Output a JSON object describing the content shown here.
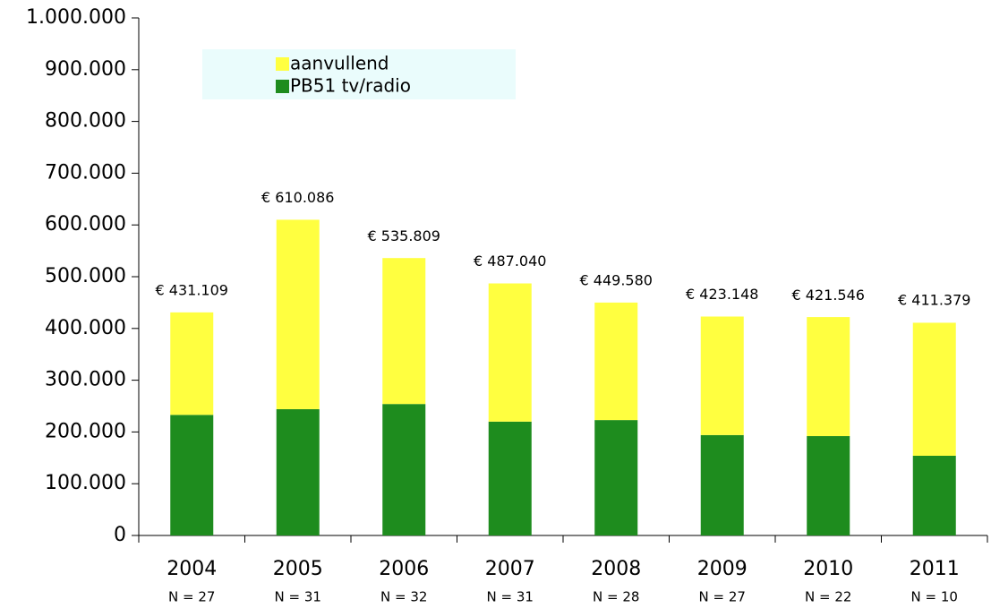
{
  "chart_data": {
    "type": "stacked-bar",
    "categories": [
      "2004",
      "2005",
      "2006",
      "2007",
      "2008",
      "2009",
      "2010",
      "2011"
    ],
    "n_labels": [
      "N = 27",
      "N = 31",
      "N = 32",
      "N = 31",
      "N = 28",
      "N = 27",
      "N = 22",
      "N = 10"
    ],
    "series": [
      {
        "name": "PB51 tv/radio",
        "color": "#1e8c1e",
        "values": [
          233000,
          244000,
          254000,
          220000,
          223000,
          194000,
          192000,
          154000
        ]
      },
      {
        "name": "aanvullend",
        "color": "#ffff40",
        "values": [
          198000,
          366000,
          282000,
          267000,
          227000,
          229000,
          230000,
          257000
        ]
      }
    ],
    "totals": {
      "values": [
        431109,
        610086,
        535809,
        487040,
        449580,
        423148,
        421546,
        411379
      ],
      "value_labels": [
        "€ 431.109",
        "€ 610.086",
        "€ 535.809",
        "€ 487.040",
        "€ 449.580",
        "€ 423.148",
        "€ 421.546",
        "€ 411.379"
      ]
    },
    "ylim": [
      0,
      1000000
    ],
    "yticks": [
      0,
      {
        "value": 100000,
        "label": "100.000"
      },
      {
        "value": 200000,
        "label": "200.000"
      },
      {
        "value": 300000,
        "label": "300.000"
      },
      {
        "value": 400000,
        "label": "400.000"
      },
      {
        "value": 500000,
        "label": "500.000"
      },
      {
        "value": 600000,
        "label": "600.000"
      },
      {
        "value": 700000,
        "label": "700.000"
      },
      {
        "value": 800000,
        "label": "800.000"
      },
      {
        "value": 900000,
        "label": "900.000"
      },
      {
        "value": 1000000,
        "label": "1.000.000"
      }
    ],
    "grid": false,
    "legend": "upper left"
  }
}
